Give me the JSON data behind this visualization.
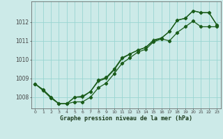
{
  "xlabel": "Graphe pression niveau de la mer (hPa)",
  "background_color": "#cceae8",
  "grid_color": "#99d5d2",
  "line_color": "#1a5c1a",
  "xlim": [
    -0.5,
    23.5
  ],
  "ylim": [
    1007.4,
    1013.1
  ],
  "yticks": [
    1008,
    1009,
    1010,
    1011,
    1012
  ],
  "xticks": [
    0,
    1,
    2,
    3,
    4,
    5,
    6,
    7,
    8,
    9,
    10,
    11,
    12,
    13,
    14,
    15,
    16,
    17,
    18,
    19,
    20,
    21,
    22,
    23
  ],
  "s1": [
    1008.7,
    1008.4,
    1008.0,
    1007.65,
    1007.65,
    1008.0,
    1008.05,
    1008.3,
    1008.9,
    1009.05,
    1009.5,
    1010.1,
    1010.3,
    1010.5,
    1010.65,
    1011.0,
    1011.15,
    1011.5,
    1012.1,
    1012.2,
    1012.6,
    1012.5,
    1012.5,
    1011.85
  ],
  "s2": [
    1008.7,
    1008.35,
    1007.95,
    1007.65,
    1007.65,
    1007.75,
    1007.75,
    1008.0,
    1008.5,
    1008.75,
    1009.25,
    1009.8,
    1010.1,
    1010.4,
    1010.55,
    1010.95,
    1011.1,
    1011.0,
    1011.45,
    1011.75,
    1012.05,
    1011.75,
    1011.75,
    1011.75
  ],
  "s3": [
    1008.7,
    1008.4,
    1008.0,
    1007.65,
    1007.65,
    1008.0,
    1008.0,
    1008.3,
    1008.85,
    1009.0,
    1009.45,
    1010.05,
    1010.3,
    1010.5,
    1010.65,
    1011.05,
    1011.15,
    1011.5,
    1012.1,
    1012.2,
    1012.6,
    1012.5,
    1012.5,
    1011.85
  ]
}
